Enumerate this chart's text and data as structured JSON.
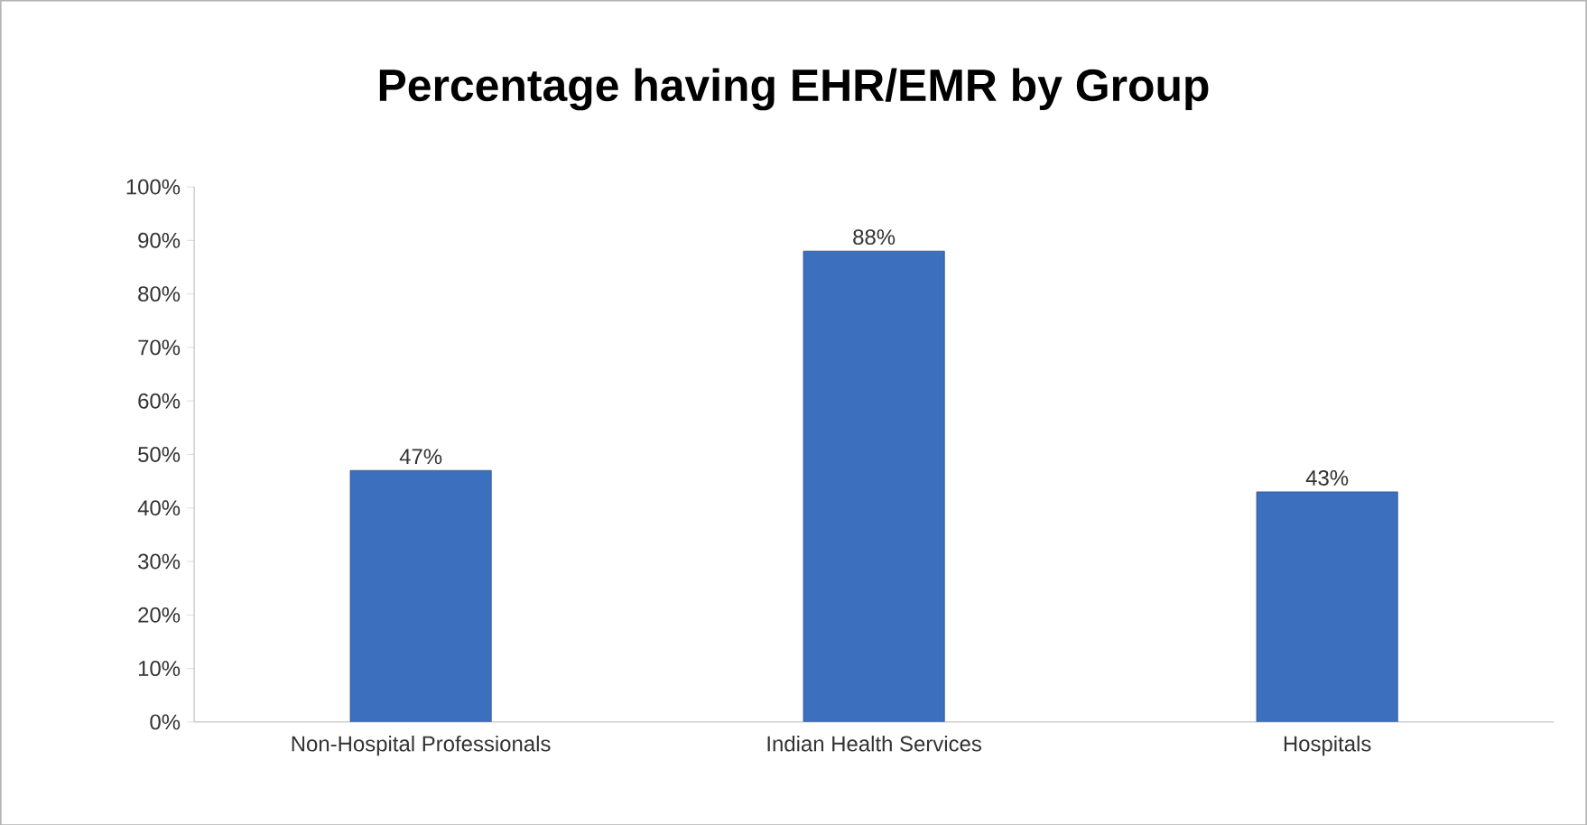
{
  "chart_data": {
    "type": "bar",
    "title": "Percentage having EHR/EMR by Group",
    "categories": [
      "Non-Hospital Professionals",
      "Indian Health Services",
      "Hospitals"
    ],
    "values": [
      47,
      88,
      43
    ],
    "value_labels": [
      "47%",
      "88%",
      "43%"
    ],
    "color": "#3d6fbf",
    "ylim": [
      0,
      100
    ],
    "yticks": [
      {
        "value": 0,
        "label": "0%"
      },
      {
        "value": 10,
        "label": "10%"
      },
      {
        "value": 20,
        "label": "20%"
      },
      {
        "value": 30,
        "label": "30%"
      },
      {
        "value": 40,
        "label": "40%"
      },
      {
        "value": 50,
        "label": "50%"
      },
      {
        "value": 60,
        "label": "60%"
      },
      {
        "value": 70,
        "label": "70%"
      },
      {
        "value": 80,
        "label": "80%"
      },
      {
        "value": 90,
        "label": "90%"
      },
      {
        "value": 100,
        "label": "100%"
      }
    ]
  }
}
